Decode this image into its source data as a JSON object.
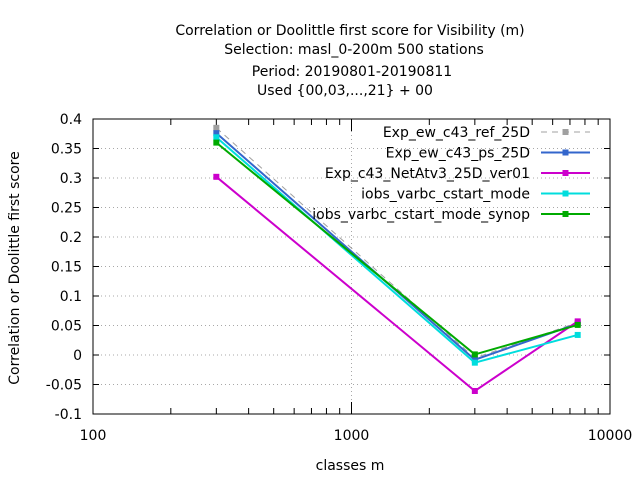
{
  "chart_data": {
    "type": "line",
    "title_lines": [
      "Correlation or Doolittle first score  for Visibility (m)",
      "Selection: masl_0-200m    500 stations",
      "Period: 20190801-20190811",
      "Used {00,03,...,21} + 00"
    ],
    "xlabel": "classes m",
    "ylabel": "Correlation or Doolittle first score",
    "x_scale": "log",
    "xlim": [
      100,
      10000
    ],
    "ylim": [
      -0.1,
      0.4
    ],
    "x_ticks": [
      100,
      1000,
      10000
    ],
    "x_tick_labels": [
      "100",
      "1000",
      "10000"
    ],
    "y_ticks": [
      -0.1,
      -0.05,
      0,
      0.05,
      0.1,
      0.15,
      0.2,
      0.25,
      0.3,
      0.35,
      0.4
    ],
    "y_tick_labels": [
      "-0.1",
      "-0.05",
      "0",
      "0.05",
      "0.1",
      "0.15",
      "0.2",
      "0.25",
      "0.3",
      "0.35",
      "0.4"
    ],
    "grid": true,
    "legend_position": "top-right",
    "x": [
      300,
      3000,
      7500
    ],
    "series": [
      {
        "name": "Exp_ew_c43_ref_25D",
        "values": [
          0.385,
          -0.005,
          0.055
        ],
        "color": "#a0a0a0",
        "dashed": true
      },
      {
        "name": "Exp_ew_c43_ps_25D",
        "values": [
          0.376,
          -0.008,
          0.053
        ],
        "color": "#3366cc",
        "dashed": false
      },
      {
        "name": "Exp_c43_NetAtv3_25D_ver01",
        "values": [
          0.302,
          -0.061,
          0.057
        ],
        "color": "#cc00cc",
        "dashed": false
      },
      {
        "name": "iobs_varbc_cstart_mode",
        "values": [
          0.369,
          -0.013,
          0.034
        ],
        "color": "#00dddd",
        "dashed": false
      },
      {
        "name": "iobs_varbc_cstart_mode_synop",
        "values": [
          0.36,
          0.001,
          0.051
        ],
        "color": "#00aa00",
        "dashed": false
      }
    ]
  }
}
